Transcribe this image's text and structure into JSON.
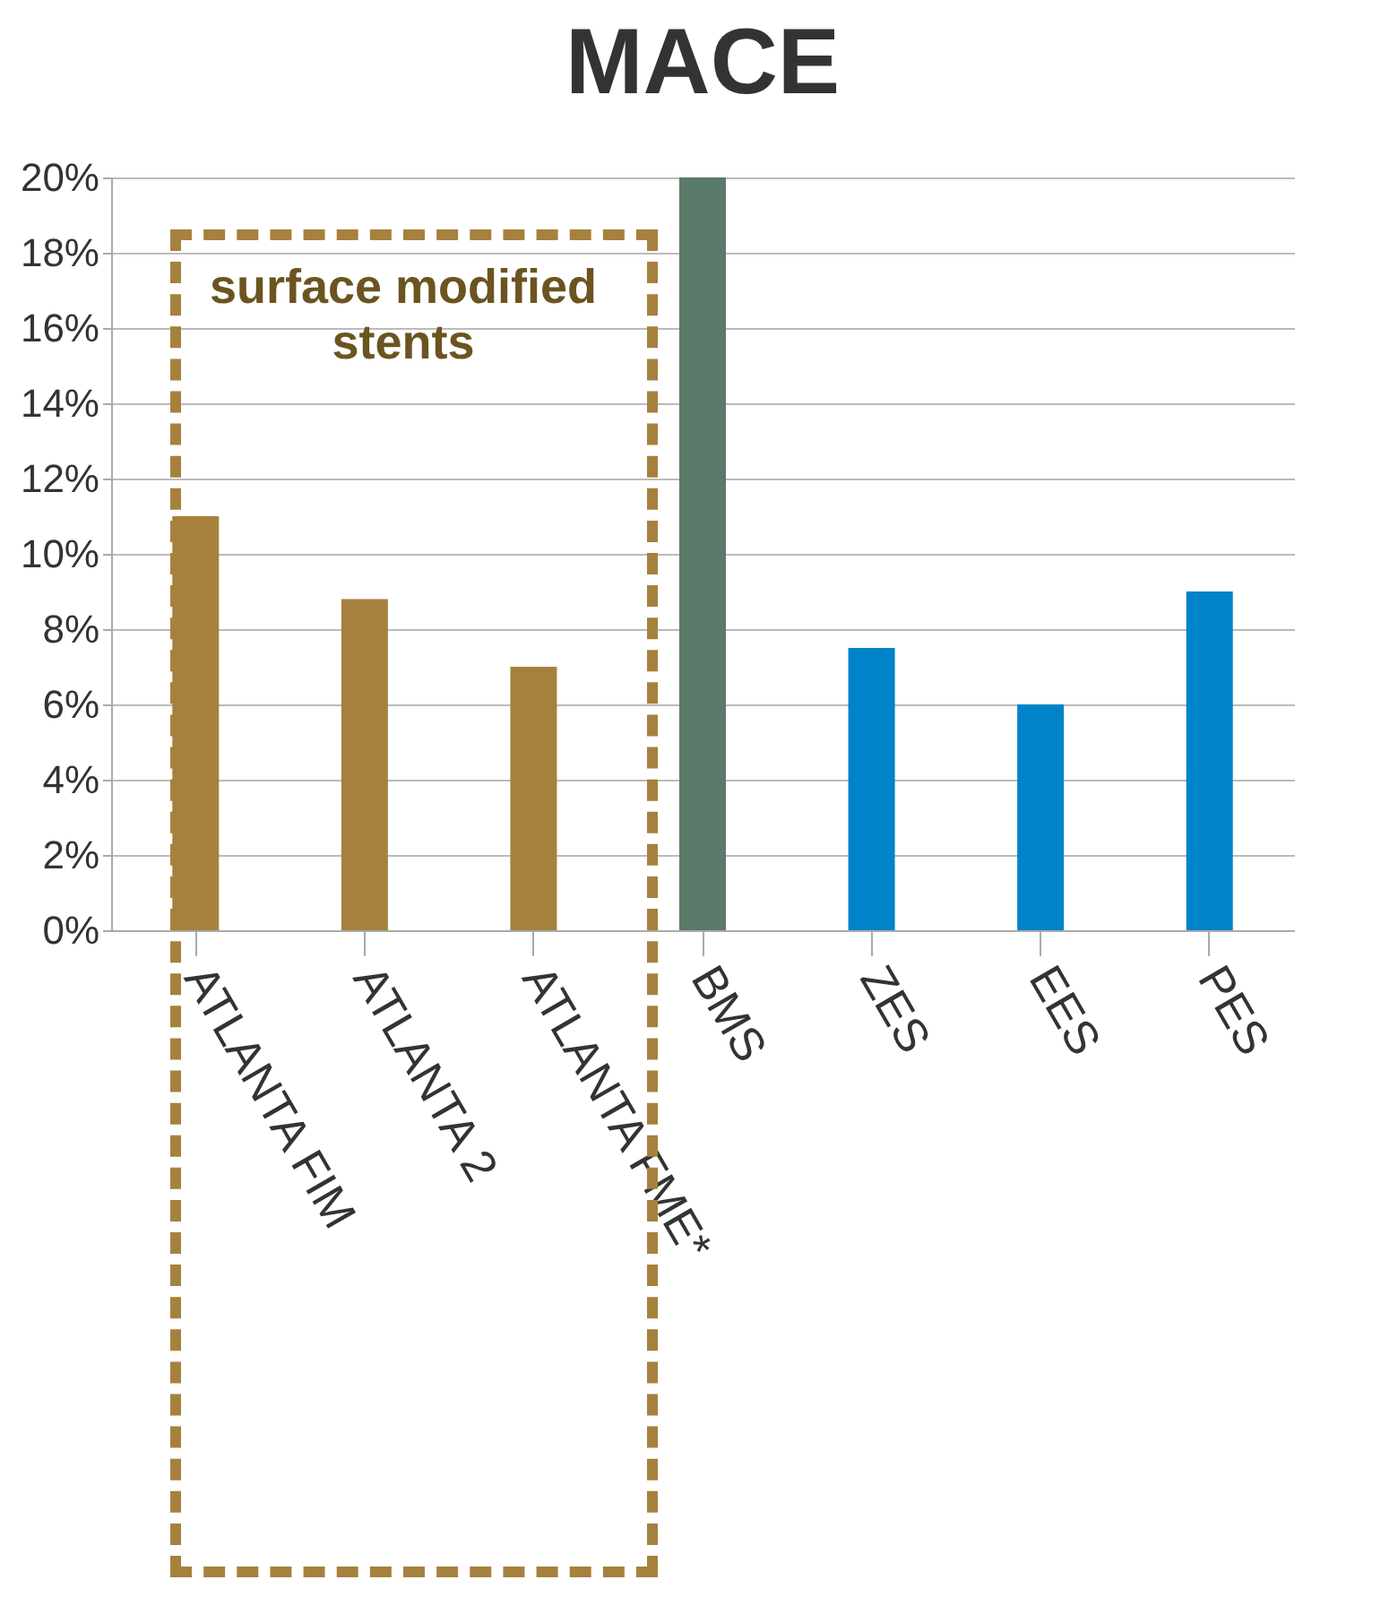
{
  "chart_data": {
    "type": "bar",
    "title": "MACE",
    "categories": [
      "ATLANTA FIM",
      "ATLANTA 2",
      "ATLANTA FME*",
      null,
      "BMS",
      null,
      "ZES",
      "EES",
      "PES"
    ],
    "values": [
      11,
      8.8,
      7,
      null,
      20,
      null,
      7.5,
      6,
      9
    ],
    "colors": [
      "#a6813e",
      "#a6813e",
      "#a6813e",
      "#a6813e",
      "#5a7a6a",
      "#5a7a6a",
      "#0083c9",
      "#0083c9",
      "#0083c9"
    ],
    "ylim": [
      0,
      20
    ],
    "yticks": [
      {
        "value": 0,
        "label": "0%"
      },
      {
        "value": 2,
        "label": "2%"
      },
      {
        "value": 4,
        "label": "4%"
      },
      {
        "value": 6,
        "label": "6%"
      },
      {
        "value": 8,
        "label": "8%"
      },
      {
        "value": 10,
        "label": "10%"
      },
      {
        "value": 12,
        "label": "12%"
      },
      {
        "value": 14,
        "label": "14%"
      },
      {
        "value": 16,
        "label": "16%"
      },
      {
        "value": 18,
        "label": "18%"
      },
      {
        "value": 20,
        "label": "20%"
      }
    ],
    "grid": "y",
    "annotations": [
      "surface modified stents"
    ]
  }
}
